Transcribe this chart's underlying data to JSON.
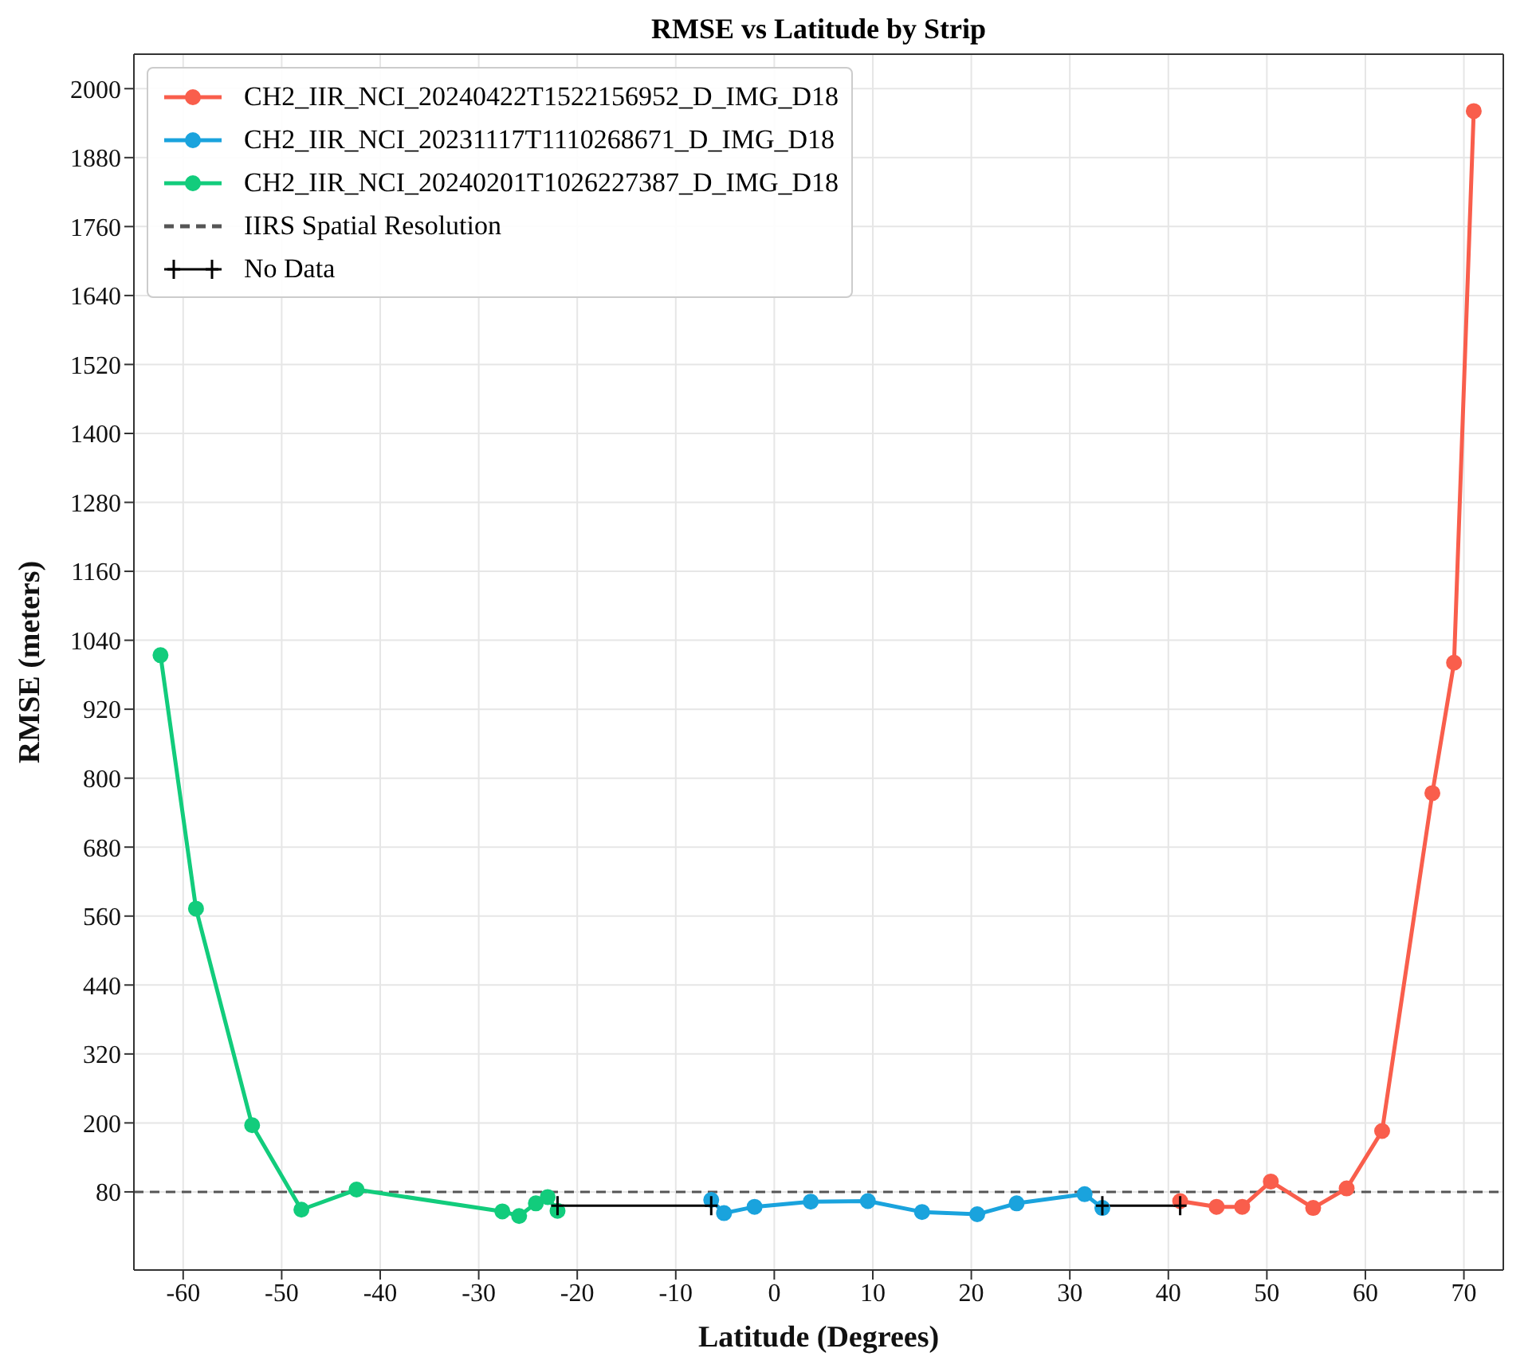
{
  "chart_data": {
    "type": "line",
    "title": "RMSE vs Latitude by Strip",
    "xlabel": "Latitude (Degrees)",
    "ylabel": "RMSE (meters)",
    "xlim": [
      -65,
      74
    ],
    "xticks": [
      -60,
      -50,
      -40,
      -30,
      -20,
      -10,
      0,
      10,
      20,
      30,
      40,
      50,
      60,
      70
    ],
    "ylim": [
      -56,
      2060
    ],
    "yticks": [
      80,
      200,
      320,
      440,
      560,
      680,
      800,
      920,
      1040,
      1160,
      1280,
      1400,
      1520,
      1640,
      1760,
      1880,
      2000
    ],
    "grid": true,
    "legend": "top left",
    "marker": "circle",
    "line_style": "solid",
    "series": [
      {
        "name": "CH2_IIR_NCI_20240422T1522156952_D_IMG_D18",
        "color": "#f95e4c",
        "x": [
          41.2,
          44.9,
          47.5,
          50.4,
          54.7,
          58.1,
          61.7,
          66.8,
          69.0,
          71.0
        ],
        "values": [
          64,
          54,
          54,
          98,
          52,
          86,
          186,
          774,
          1001,
          1961
        ]
      },
      {
        "name": "CH2_IIR_NCI_20231117T1110268671_D_IMG_D18",
        "color": "#1aa3dd",
        "x": [
          -6.4,
          -5.1,
          -2.0,
          3.7,
          9.5,
          15.0,
          20.6,
          24.6,
          31.5,
          33.3
        ],
        "values": [
          66,
          43,
          54,
          63,
          64,
          45,
          41,
          60,
          76,
          52
        ]
      },
      {
        "name": "CH2_IIR_NCI_20240201T1026227387_D_IMG_D18",
        "color": "#12cc7c",
        "x": [
          -62.3,
          -58.7,
          -53.0,
          -48.0,
          -42.4,
          -27.6,
          -25.9,
          -24.2,
          -23.0,
          -22.0
        ],
        "values": [
          1014,
          573,
          196,
          49,
          84,
          46,
          38,
          60,
          71,
          47
        ]
      },
      {
        "name": "No Data",
        "color": "#000000",
        "marker": "cross",
        "x": [
          -22.0,
          -6.4,
          null,
          33.3,
          41.2
        ],
        "values": [
          56,
          56,
          null,
          56,
          56
        ]
      }
    ],
    "ref_lines": [
      {
        "axis": "y",
        "value": 80,
        "label": "IIRS Spatial Resolution",
        "color": "#555555",
        "line_style": "dashed"
      }
    ]
  }
}
